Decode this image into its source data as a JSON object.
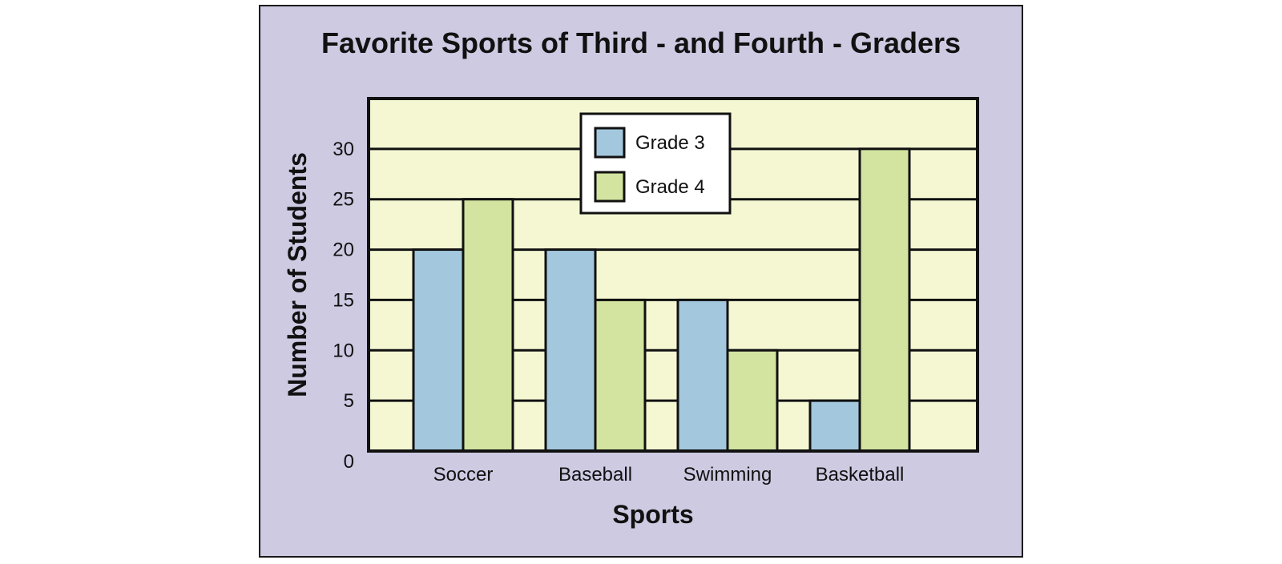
{
  "chart_data": {
    "type": "bar",
    "title": "Favorite Sports of Third - and Fourth - Graders",
    "xlabel": "Sports",
    "ylabel": "Number of Students",
    "categories": [
      "Soccer",
      "Baseball",
      "Swimming",
      "Basketball"
    ],
    "series": [
      {
        "name": "Grade 3",
        "values": [
          20,
          20,
          15,
          5
        ],
        "color": "#a3c8de"
      },
      {
        "name": "Grade 4",
        "values": [
          25,
          15,
          10,
          30
        ],
        "color": "#d2e4a0"
      }
    ],
    "ylim": [
      0,
      35
    ],
    "yticks": [
      0,
      5,
      10,
      15,
      20,
      25,
      30
    ],
    "grid": true,
    "legend_position": "top-center",
    "colors": {
      "frame_background": "#cdcae2",
      "plot_background": "#f4f7d2",
      "line": "#111111"
    }
  }
}
